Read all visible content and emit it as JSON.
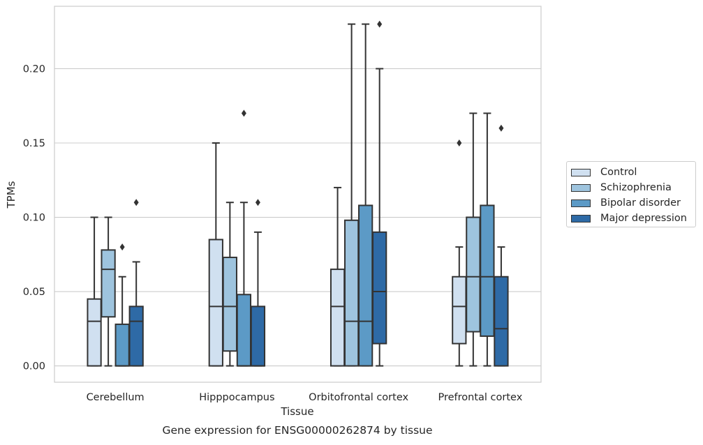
{
  "chart_data": {
    "type": "box",
    "caption": "Gene expression for ENSG00000262874 by tissue",
    "xlabel": "Tissue",
    "ylabel": "TPMs",
    "ylim": [
      -0.011,
      0.242
    ],
    "yticks": [
      0.0,
      0.05,
      0.1,
      0.15,
      0.2
    ],
    "ytick_labels": [
      "0.00",
      "0.05",
      "0.10",
      "0.15",
      "0.20"
    ],
    "grid": "horizontal",
    "legend_position": "right",
    "categories": [
      "Cerebellum",
      "Hipppocampus",
      "Orbitofrontal cortex",
      "Prefrontal cortex"
    ],
    "series": [
      {
        "name": "Control",
        "color": "#d0e0f0",
        "boxes": [
          {
            "min": 0.0,
            "q1": 0.0,
            "median": 0.03,
            "q3": 0.045,
            "max": 0.1,
            "outliers": []
          },
          {
            "min": 0.0,
            "q1": 0.0,
            "median": 0.04,
            "q3": 0.085,
            "max": 0.15,
            "outliers": []
          },
          {
            "min": 0.0,
            "q1": 0.0,
            "median": 0.04,
            "q3": 0.065,
            "max": 0.12,
            "outliers": []
          },
          {
            "min": 0.0,
            "q1": 0.015,
            "median": 0.04,
            "q3": 0.06,
            "max": 0.08,
            "outliers": [
              0.15
            ]
          }
        ]
      },
      {
        "name": "Schizophrenia",
        "color": "#9ec4de",
        "boxes": [
          {
            "min": 0.0,
            "q1": 0.033,
            "median": 0.065,
            "q3": 0.078,
            "max": 0.1,
            "outliers": []
          },
          {
            "min": 0.0,
            "q1": 0.01,
            "median": 0.04,
            "q3": 0.073,
            "max": 0.11,
            "outliers": []
          },
          {
            "min": 0.0,
            "q1": 0.0,
            "median": 0.03,
            "q3": 0.098,
            "max": 0.23,
            "outliers": []
          },
          {
            "min": 0.0,
            "q1": 0.023,
            "median": 0.06,
            "q3": 0.1,
            "max": 0.17,
            "outliers": []
          }
        ]
      },
      {
        "name": "Bipolar disorder",
        "color": "#5c9ac6",
        "boxes": [
          {
            "min": 0.0,
            "q1": 0.0,
            "median": 0.0,
            "q3": 0.028,
            "max": 0.06,
            "outliers": [
              0.08
            ]
          },
          {
            "min": 0.0,
            "q1": 0.0,
            "median": 0.0,
            "q3": 0.048,
            "max": 0.11,
            "outliers": [
              0.17
            ]
          },
          {
            "min": 0.0,
            "q1": 0.0,
            "median": 0.03,
            "q3": 0.108,
            "max": 0.23,
            "outliers": []
          },
          {
            "min": 0.0,
            "q1": 0.02,
            "median": 0.06,
            "q3": 0.108,
            "max": 0.17,
            "outliers": []
          }
        ]
      },
      {
        "name": "Major depression",
        "color": "#2e6aa6",
        "boxes": [
          {
            "min": 0.0,
            "q1": 0.0,
            "median": 0.03,
            "q3": 0.04,
            "max": 0.07,
            "outliers": [
              0.11
            ]
          },
          {
            "min": 0.0,
            "q1": 0.0,
            "median": 0.0,
            "q3": 0.04,
            "max": 0.09,
            "outliers": [
              0.11
            ]
          },
          {
            "min": 0.0,
            "q1": 0.015,
            "median": 0.05,
            "q3": 0.09,
            "max": 0.2,
            "outliers": [
              0.23
            ]
          },
          {
            "min": 0.0,
            "q1": 0.0,
            "median": 0.025,
            "q3": 0.06,
            "max": 0.08,
            "outliers": [
              0.16
            ]
          }
        ]
      }
    ]
  }
}
